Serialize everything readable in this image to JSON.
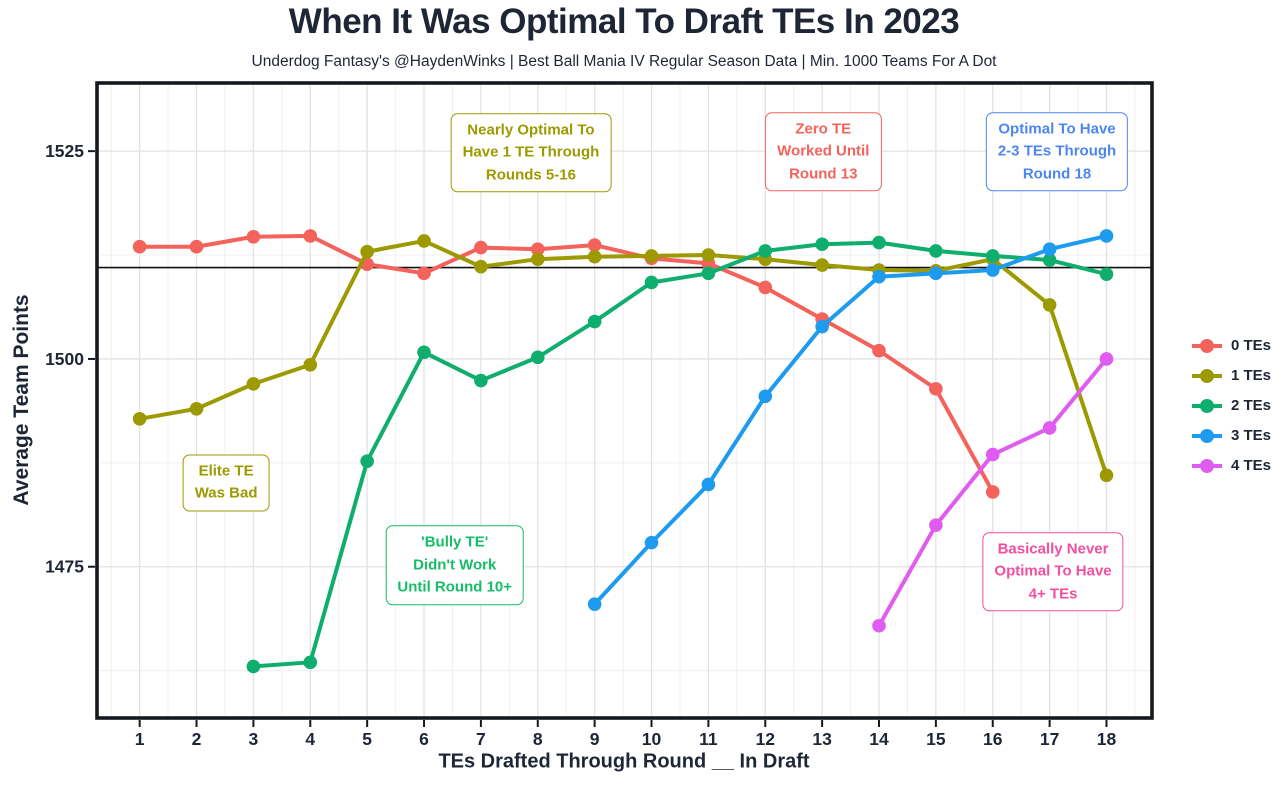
{
  "header": {
    "title": "When It Was Optimal To Draft TEs In 2023",
    "subtitle": "Underdog Fantasy's @HaydenWinks | Best Ball Mania IV Regular Season Data | Min. 1000 Teams For A Dot"
  },
  "chart_data": {
    "type": "line",
    "title": "When It Was Optimal To Draft TEs In 2023",
    "xlabel": "TEs Drafted Through Round __ In Draft",
    "ylabel": "Average Team Points",
    "x_ticks": [
      1,
      2,
      3,
      4,
      5,
      6,
      7,
      8,
      9,
      10,
      11,
      12,
      13,
      14,
      15,
      16,
      17,
      18
    ],
    "y_ticks": [
      1475,
      1500,
      1525
    ],
    "y_minor_ticks": [
      1462.5,
      1487.5,
      1512.5
    ],
    "xlim": [
      0.25,
      18.8
    ],
    "ylim": [
      1456.8,
      1533.2
    ],
    "grid": "major+minor",
    "legend_position": "right",
    "reference_line_y": 1511,
    "series": [
      {
        "name": "0 TEs",
        "color": "#F4625C",
        "start_round": 1,
        "values": [
          1513.5,
          1513.5,
          1514.7,
          1514.8,
          1511.4,
          1510.3,
          1513.4,
          1513.2,
          1513.7,
          1512.1,
          1511.5,
          1508.6,
          1504.8,
          1501.0,
          1496.4,
          1484.0
        ]
      },
      {
        "name": "1 TEs",
        "color": "#9C9A00",
        "start_round": 1,
        "values": [
          1492.8,
          1494.0,
          1497.0,
          1499.3,
          1512.9,
          1514.2,
          1511.1,
          1512.0,
          1512.3,
          1512.4,
          1512.5,
          1512.0,
          1511.3,
          1510.7,
          1510.6,
          1512.0,
          1506.5,
          1486.0
        ]
      },
      {
        "name": "2 TEs",
        "color": "#0FAE6E",
        "start_round": 3,
        "values": [
          1463.0,
          1463.5,
          1487.7,
          1500.8,
          1497.4,
          1500.2,
          1504.5,
          1509.2,
          1510.3,
          1513.0,
          1513.8,
          1514.0,
          1513.0,
          1512.4,
          1511.9,
          1510.2
        ]
      },
      {
        "name": "3 TEs",
        "color": "#1E9BEF",
        "start_round": 9,
        "values": [
          1470.5,
          1477.9,
          1484.9,
          1495.5,
          1503.9,
          1509.9,
          1510.3,
          1510.7,
          1513.2,
          1514.8
        ]
      },
      {
        "name": "4 TEs",
        "color": "#E05CF0",
        "start_round": 14,
        "values": [
          1467.9,
          1480.0,
          1488.5,
          1491.7,
          1500.0
        ]
      }
    ],
    "annotations": [
      {
        "id": "annotation-nearly-optimal-1te",
        "x": 7.88,
        "y": 1524.8,
        "color": "#9C9A00",
        "lines": [
          "Nearly Optimal To",
          "Have 1 TE Through",
          "Rounds 5-16"
        ]
      },
      {
        "id": "annotation-zero-te",
        "x": 13.02,
        "y": 1524.9,
        "color": "#F4625C",
        "lines": [
          "Zero TE",
          "Worked Until",
          "Round 13"
        ]
      },
      {
        "id": "annotation-optimal-2-3-tes",
        "x": 17.13,
        "y": 1524.9,
        "color": "#4D86F2",
        "lines": [
          "Optimal To Have",
          "2-3 TEs Through",
          "Round 18"
        ]
      },
      {
        "id": "annotation-elite-te",
        "x": 2.52,
        "y": 1485.1,
        "color": "#9C9A00",
        "lines": [
          "Elite TE",
          "Was Bad"
        ]
      },
      {
        "id": "annotation-bully-te",
        "x": 6.54,
        "y": 1475.2,
        "color": "#16BD68",
        "lines": [
          "'Bully TE'",
          "Didn't Work",
          "Until Round 10+"
        ]
      },
      {
        "id": "annotation-basically-never-4plus",
        "x": 17.06,
        "y": 1474.4,
        "color": "#F24F9E",
        "lines": [
          "Basically Never",
          "Optimal To Have",
          "4+ TEs"
        ]
      }
    ]
  },
  "style_colors": {
    "text": "#1e2636",
    "plot_border": "#15191f",
    "major_grid": "#e2e2e2",
    "minor_grid": "#f0f0f0",
    "reference_line": "#111111"
  }
}
